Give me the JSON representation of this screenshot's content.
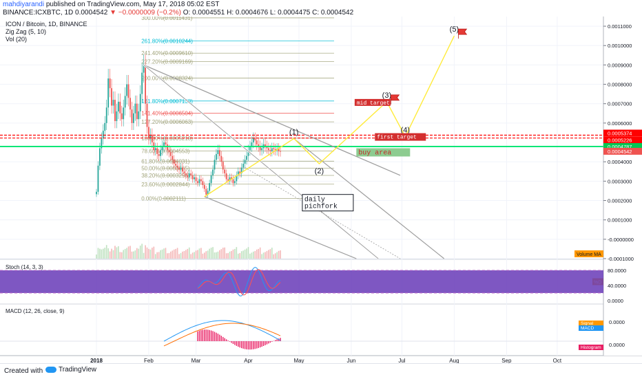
{
  "header": {
    "user": "mahdiyarandi",
    "published": "published on TradingView.com, May 17, 2018 05:02 EST",
    "symbol": "BINANCE:ICXBTC, 1D",
    "last": "0.0004542",
    "change": "−0.0000009 (−0.2%)",
    "ohlc": "O: 0.0004551 H: 0.0004676 L: 0.0004475 C: 0.0004542"
  },
  "legend": {
    "title": "ICON / Bitcoin, 1D, BINANCE",
    "zigzag": "Zig Zag (5, 10)",
    "vol": "Vol (20)"
  },
  "colors": {
    "up": "#26a69a",
    "down": "#ef5350",
    "fib": "#9e9e9e",
    "green_line": "#00e676",
    "red_line": "#ff0000",
    "stoch_k": "#2196f3",
    "stoch_d": "#ff5252",
    "wave": "#ffeb3b"
  },
  "chart_data": {
    "type": "candlestick",
    "price_axis": {
      "range": [
        -0.0001,
        0.00115
      ],
      "ticks": [
        "0.0011000",
        "0.0010000",
        "0.0009000",
        "0.0008000",
        "0.0007000",
        "0.0006000",
        "0.0004000",
        "0.0003000",
        "0.0002000",
        "0.0001000",
        "-0.0000000",
        "-0.0001000"
      ],
      "tick_values": [
        0.0011,
        0.001,
        0.0009,
        0.0008,
        0.0007,
        0.0006,
        0.0004,
        0.0003,
        0.0002,
        0.0001,
        0,
        -0.0001
      ],
      "price_labels": [
        {
          "value": 0.0005374,
          "text": "0.0005374",
          "color": "#ff0000"
        },
        {
          "value": 0.0005226,
          "text": "0.0005226",
          "color": "#ff0000"
        },
        {
          "value": 0.0004787,
          "text": "0.0004787",
          "color": "#00c853"
        },
        {
          "value": 0.0004542,
          "text": "0.0004542",
          "color": "#ef5350"
        }
      ]
    },
    "time_axis": {
      "labels": [
        "2018",
        "Feb",
        "Mar",
        "Apr",
        "May",
        "Jun",
        "Jul",
        "Aug",
        "Sep",
        "Oct"
      ],
      "days": [
        0,
        31,
        59,
        90,
        120,
        151,
        181,
        212,
        243,
        273
      ]
    },
    "closes": [
      0.000245,
      0.00038,
      0.00047,
      0.00052,
      0.00056,
      0.0006,
      0.00068,
      0.00083,
      0.00078,
      0.00069,
      0.00072,
      0.00061,
      0.00066,
      0.00071,
      0.00065,
      0.00062,
      0.00068,
      0.00074,
      0.0008,
      0.00073,
      0.00067,
      0.0006,
      0.00065,
      0.0007,
      0.00062,
      0.00066,
      0.00075,
      0.00086,
      0.0009,
      0.0007,
      0.00058,
      0.00052,
      0.00054,
      0.0005,
      0.00046,
      0.00047,
      0.00044,
      0.00043,
      0.00046,
      0.00048,
      0.0005,
      0.00049,
      0.00046,
      0.00045,
      0.00043,
      0.00041,
      0.00039,
      0.00038,
      0.00037,
      0.00036,
      0.00037,
      0.00035,
      0.00034,
      0.00033,
      0.00032,
      0.00034,
      0.00033,
      0.00031,
      0.00032,
      0.0003,
      0.00029,
      0.00031,
      0.0003,
      0.00028,
      0.00026,
      0.00023,
      0.00025,
      0.00029,
      0.00033,
      0.00036,
      0.00041,
      0.00044,
      0.00046,
      0.00043,
      0.0004,
      0.00036,
      0.00034,
      0.00031,
      0.0003,
      0.00032,
      0.00031,
      0.00029,
      0.0003,
      0.00033,
      0.00035,
      0.00034,
      0.00037,
      0.00039,
      0.00041,
      0.00043,
      0.00046,
      0.00048,
      0.0005,
      0.00052,
      0.00051,
      0.00049,
      0.00048,
      0.00046,
      0.00047,
      0.00049,
      0.00048,
      0.00047,
      0.00046,
      0.000455,
      0.00047,
      0.000465,
      0.00046,
      0.000468,
      0.000455,
      0.000454
    ],
    "fib_levels": [
      {
        "pct": "0.00%",
        "value": 0.0002111
      },
      {
        "pct": "23.60%",
        "value": 0.0002844
      },
      {
        "pct": "38.20%",
        "value": 0.0003298
      },
      {
        "pct": "50.00%",
        "value": 0.0003665
      },
      {
        "pct": "61.80%",
        "value": 0.0004031
      },
      {
        "pct": "78.60%",
        "value": 0.0004553
      },
      {
        "pct": "100.00%",
        "value": 0.0005218
      },
      {
        "pct": "127.20%",
        "value": 0.0006063
      },
      {
        "pct": "141.40%",
        "value": 0.0006504
      },
      {
        "pct": "161.80%",
        "value": 0.0007138
      },
      {
        "pct": "200.00%",
        "value": 0.0008324
      },
      {
        "pct": "227.20%",
        "value": 0.0009169
      },
      {
        "pct": "241.40%",
        "value": 0.000961
      },
      {
        "pct": "261.80%",
        "value": 0.0010244
      },
      {
        "pct": "300.00%",
        "value": 0.0011431
      }
    ],
    "waves": [
      {
        "label": "(1)",
        "day": 117,
        "value": 0.00052
      },
      {
        "label": "(2)",
        "day": 132,
        "value": 0.00039
      },
      {
        "label": "(3)",
        "day": 172,
        "value": 0.00071
      },
      {
        "label": "(4)",
        "day": 183,
        "value": 0.00053
      },
      {
        "label": "(5)",
        "day": 212,
        "value": 0.00105
      }
    ],
    "annotations": {
      "mid_target": "mid target",
      "first_target": "first target",
      "buy_area": "buy area",
      "pitchfork": [
        "daily",
        "pichfork"
      ]
    },
    "indicators": {
      "volume_label": "Volume MA",
      "stoch_title": "Stoch (14, 3, 3)",
      "stoch_ticks": [
        "80.0000",
        "40.0000",
        "0.0000"
      ],
      "stoch_tick_values": [
        80,
        40,
        0
      ],
      "stoch_badge": "%D",
      "macd_title": "MACD (12, 26, close, 9)",
      "macd_ticks": [
        "0.0000",
        "0.0000"
      ],
      "macd_badges": [
        "Signal",
        "MACD",
        "Histogram"
      ]
    }
  },
  "footer": {
    "created": "Created with",
    "brand": "TradingView"
  }
}
